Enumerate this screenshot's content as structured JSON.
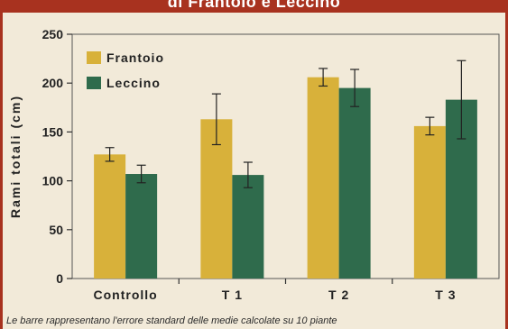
{
  "header": {
    "title": "di Frantoio e Leccino"
  },
  "caption": "Le barre rappresentano l'errore standard delle medie calcolate su 10 piante",
  "chart_data": {
    "type": "bar",
    "title": "di Frantoio e Leccino",
    "xlabel": "",
    "ylabel": "Rami totali (cm)",
    "ylim": [
      0,
      250
    ],
    "yticks": [
      0,
      50,
      100,
      150,
      200,
      250
    ],
    "categories": [
      "Controllo",
      "T 1",
      "T 2",
      "T 3"
    ],
    "legend_position": "top-left",
    "grid": false,
    "series": [
      {
        "name": "Frantoio",
        "color": "#d8b13a",
        "values": [
          127,
          163,
          206,
          156
        ],
        "errors": [
          7,
          26,
          9,
          9
        ]
      },
      {
        "name": "Leccino",
        "color": "#2f6b4c",
        "values": [
          107,
          106,
          195,
          183
        ],
        "errors": [
          9,
          13,
          19,
          40
        ]
      }
    ]
  }
}
